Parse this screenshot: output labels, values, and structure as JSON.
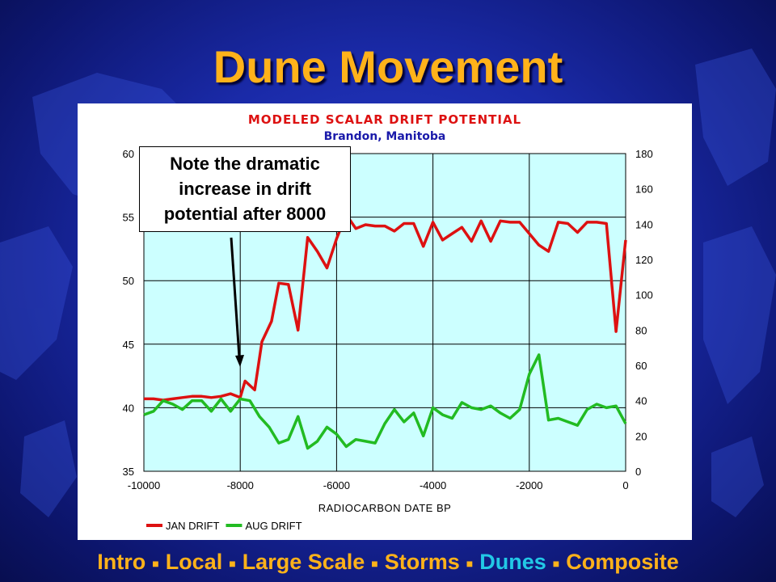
{
  "slide": {
    "title": "Dune Movement",
    "callout_lines": [
      "Note the dramatic",
      "increase in drift",
      "potential after 8000"
    ]
  },
  "nav": {
    "items": [
      {
        "label": "Intro",
        "active": false
      },
      {
        "label": "Local",
        "active": false
      },
      {
        "label": "Large Scale",
        "active": false
      },
      {
        "label": "Storms",
        "active": false
      },
      {
        "label": "Dunes",
        "active": true
      },
      {
        "label": "Composite",
        "active": false
      }
    ],
    "separator": "■"
  },
  "colors": {
    "title": "#ffb21a",
    "nav_active": "#22c8e6",
    "plot_bg": "#ccffff",
    "jan": "#dd1111",
    "aug": "#22bb22",
    "chart_title": "#dd1111",
    "chart_subtitle": "#1a1aaa"
  },
  "chart_data": {
    "type": "line",
    "title": "MODELED SCALAR DRIFT POTENTIAL",
    "subtitle": "Brandon, Manitoba",
    "xlabel": "RADIOCARBON DATE BP",
    "xlim": [
      -10000,
      0
    ],
    "xticks": [
      -10000,
      -8000,
      -6000,
      -4000,
      -2000,
      0
    ],
    "ylim_left": [
      35,
      60
    ],
    "yticks_left": [
      35,
      40,
      45,
      50,
      55,
      60
    ],
    "ylim_right": [
      0,
      180
    ],
    "yticks_right": [
      0,
      20,
      40,
      60,
      80,
      100,
      120,
      140,
      160,
      180
    ],
    "grid": true,
    "legend_position": "bottom",
    "series": [
      {
        "name": "JAN DRIFT",
        "axis": "left",
        "color": "#dd1111",
        "points": [
          [
            -10000,
            40.7
          ],
          [
            -9800,
            40.7
          ],
          [
            -9600,
            40.6
          ],
          [
            -9400,
            40.7
          ],
          [
            -9200,
            40.8
          ],
          [
            -9000,
            40.9
          ],
          [
            -8800,
            40.9
          ],
          [
            -8600,
            40.8
          ],
          [
            -8400,
            40.9
          ],
          [
            -8200,
            41.1
          ],
          [
            -8000,
            40.8
          ],
          [
            -7900,
            42.1
          ],
          [
            -7700,
            41.4
          ],
          [
            -7550,
            45.2
          ],
          [
            -7350,
            46.8
          ],
          [
            -7200,
            49.8
          ],
          [
            -7000,
            49.7
          ],
          [
            -6800,
            46.1
          ],
          [
            -6600,
            53.4
          ],
          [
            -6400,
            52.3
          ],
          [
            -6200,
            51.0
          ],
          [
            -6000,
            53.3
          ],
          [
            -5800,
            55.2
          ],
          [
            -5600,
            54.1
          ],
          [
            -5400,
            54.4
          ],
          [
            -5200,
            54.3
          ],
          [
            -5000,
            54.3
          ],
          [
            -4800,
            53.9
          ],
          [
            -4600,
            54.5
          ],
          [
            -4400,
            54.5
          ],
          [
            -4200,
            52.7
          ],
          [
            -4000,
            54.6
          ],
          [
            -3800,
            53.2
          ],
          [
            -3600,
            53.7
          ],
          [
            -3400,
            54.2
          ],
          [
            -3200,
            53.1
          ],
          [
            -3000,
            54.7
          ],
          [
            -2800,
            53.1
          ],
          [
            -2600,
            54.7
          ],
          [
            -2400,
            54.6
          ],
          [
            -2200,
            54.6
          ],
          [
            -2000,
            53.7
          ],
          [
            -1800,
            52.8
          ],
          [
            -1600,
            52.3
          ],
          [
            -1400,
            54.6
          ],
          [
            -1200,
            54.5
          ],
          [
            -1000,
            53.8
          ],
          [
            -800,
            54.6
          ],
          [
            -600,
            54.6
          ],
          [
            -400,
            54.5
          ],
          [
            -200,
            46.0
          ],
          [
            0,
            53.2
          ]
        ]
      },
      {
        "name": "AUG DRIFT",
        "axis": "right",
        "color": "#22bb22",
        "points": [
          [
            -10000,
            32
          ],
          [
            -9800,
            34
          ],
          [
            -9600,
            40
          ],
          [
            -9400,
            38
          ],
          [
            -9200,
            35
          ],
          [
            -9000,
            40
          ],
          [
            -8800,
            40
          ],
          [
            -8600,
            34
          ],
          [
            -8400,
            41
          ],
          [
            -8200,
            34
          ],
          [
            -8000,
            41
          ],
          [
            -7800,
            40
          ],
          [
            -7600,
            31
          ],
          [
            -7400,
            25
          ],
          [
            -7200,
            16
          ],
          [
            -7000,
            18
          ],
          [
            -6800,
            31
          ],
          [
            -6600,
            13
          ],
          [
            -6400,
            17
          ],
          [
            -6200,
            25
          ],
          [
            -6000,
            21
          ],
          [
            -5800,
            14
          ],
          [
            -5600,
            18
          ],
          [
            -5400,
            17
          ],
          [
            -5200,
            16
          ],
          [
            -5000,
            27
          ],
          [
            -4800,
            35
          ],
          [
            -4600,
            28
          ],
          [
            -4400,
            33
          ],
          [
            -4200,
            20
          ],
          [
            -4000,
            36
          ],
          [
            -3800,
            32
          ],
          [
            -3600,
            30
          ],
          [
            -3400,
            39
          ],
          [
            -3200,
            36
          ],
          [
            -3000,
            35
          ],
          [
            -2800,
            37
          ],
          [
            -2600,
            33
          ],
          [
            -2400,
            30
          ],
          [
            -2200,
            35
          ],
          [
            -2000,
            55
          ],
          [
            -1800,
            66
          ],
          [
            -1600,
            29
          ],
          [
            -1400,
            30
          ],
          [
            -1200,
            28
          ],
          [
            -1000,
            26
          ],
          [
            -800,
            35
          ],
          [
            -600,
            38
          ],
          [
            -400,
            36
          ],
          [
            -200,
            37
          ],
          [
            0,
            27
          ]
        ]
      }
    ]
  }
}
